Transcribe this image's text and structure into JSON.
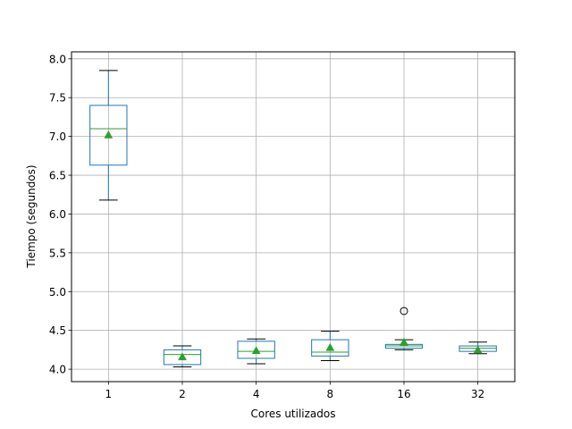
{
  "chart_data": {
    "type": "box",
    "title": "",
    "xlabel": "Cores utilizados",
    "ylabel": "Tiempo (segundos)",
    "categories": [
      "1",
      "2",
      "4",
      "8",
      "16",
      "32"
    ],
    "ylim": [
      3.84,
      8.09
    ],
    "yticks": [
      "4.0",
      "4.5",
      "5.0",
      "5.5",
      "6.0",
      "6.5",
      "7.0",
      "7.5",
      "8.0"
    ],
    "grid": true,
    "legend": "none",
    "boxes": [
      {
        "category": "1",
        "whisker_low": 6.18,
        "q1": 6.63,
        "median": 7.1,
        "q3": 7.4,
        "whisker_high": 7.85,
        "mean": 7.02,
        "outliers": []
      },
      {
        "category": "2",
        "whisker_low": 4.03,
        "q1": 4.06,
        "median": 4.19,
        "q3": 4.25,
        "whisker_high": 4.3,
        "mean": 4.16,
        "outliers": []
      },
      {
        "category": "4",
        "whisker_low": 4.07,
        "q1": 4.14,
        "median": 4.23,
        "q3": 4.36,
        "whisker_high": 4.39,
        "mean": 4.24,
        "outliers": []
      },
      {
        "category": "8",
        "whisker_low": 4.11,
        "q1": 4.17,
        "median": 4.22,
        "q3": 4.38,
        "whisker_high": 4.49,
        "mean": 4.28,
        "outliers": []
      },
      {
        "category": "16",
        "whisker_low": 4.25,
        "q1": 4.27,
        "median": 4.3,
        "q3": 4.32,
        "whisker_high": 4.38,
        "mean": 4.35,
        "outliers": [
          4.75
        ]
      },
      {
        "category": "32",
        "whisker_low": 4.2,
        "q1": 4.23,
        "median": 4.27,
        "q3": 4.3,
        "whisker_high": 4.35,
        "mean": 4.25,
        "outliers": []
      }
    ],
    "colors": {
      "box": "#1f77b4",
      "median": "#2ca02c",
      "mean": "#2ca02c",
      "whisker_cap": "#000000",
      "grid": "#b0b0b0"
    }
  }
}
